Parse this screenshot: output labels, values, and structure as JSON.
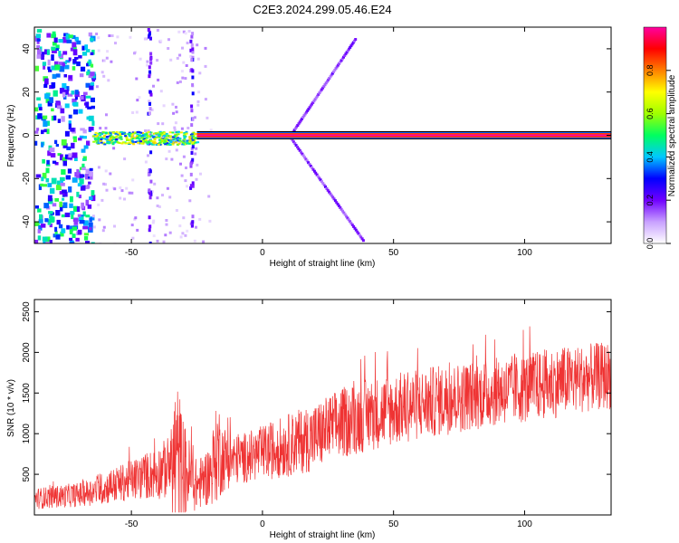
{
  "title": "C2E3.2024.299.05.46.E24",
  "chart_data": [
    {
      "type": "heatmap",
      "xlabel": "Height of straight line (km)",
      "ylabel": "Frequency (Hz)",
      "xlim": [
        -87,
        133
      ],
      "ylim": [
        -50,
        50
      ],
      "xticks": [
        -50,
        0,
        50,
        100
      ],
      "yticks": [
        -40,
        -20,
        0,
        20,
        40
      ],
      "colorbar": {
        "label": "Normalized spectral amplitude",
        "range": [
          0,
          1
        ],
        "ticks": [
          0.0,
          0.2,
          0.4,
          0.6,
          0.8
        ],
        "colors": [
          "#ffffff",
          "#c8a0ff",
          "#7000ff",
          "#0000ff",
          "#00c8ff",
          "#00ff60",
          "#a0ff00",
          "#ffff00",
          "#ff8000",
          "#ff0000",
          "#ff00a0"
        ]
      },
      "features": {
        "carrier_line": {
          "frequency": 0,
          "from_km": -25,
          "to_km": 133,
          "amplitude": 1.0
        },
        "noisy_region": {
          "from_km": -87,
          "to_km": -65,
          "amplitude": 0.5
        },
        "dispersed_band": {
          "from_km": -65,
          "to_km": -25,
          "amplitude": 0.45
        },
        "diagonal_sidebands": [
          {
            "points": [
              [
                10,
                0
              ],
              [
                35,
                45
              ]
            ]
          },
          {
            "points": [
              [
                10,
                0
              ],
              [
                38,
                -48
              ]
            ]
          }
        ]
      },
      "grid": false
    },
    {
      "type": "line",
      "xlabel": "Height of straight line (km)",
      "ylabel": "SNR (10 * v/v)",
      "xlim": [
        -87,
        133
      ],
      "ylim": [
        0,
        2650
      ],
      "xticks": [
        -50,
        0,
        50,
        100
      ],
      "yticks": [
        500,
        1000,
        1500,
        2000,
        2500
      ],
      "color": "#ef3333",
      "envelope": {
        "x": [
          -87,
          -70,
          -60,
          -50,
          -40,
          -35,
          -33,
          -30,
          -25,
          -20,
          -17,
          -15,
          -10,
          0,
          10,
          20,
          30,
          40,
          50,
          60,
          70,
          80,
          90,
          100,
          110,
          120,
          133
        ],
        "mid": [
          200,
          250,
          330,
          430,
          520,
          600,
          700,
          560,
          360,
          500,
          800,
          700,
          680,
          760,
          860,
          960,
          1130,
          1230,
          1300,
          1360,
          1420,
          1470,
          1520,
          1560,
          1620,
          1670,
          1720
        ],
        "spread": [
          130,
          150,
          200,
          250,
          330,
          400,
          1100,
          600,
          300,
          380,
          650,
          420,
          300,
          340,
          390,
          420,
          440,
          450,
          450,
          440,
          440,
          430,
          420,
          430,
          440,
          420,
          420
        ]
      },
      "grid": false
    }
  ]
}
